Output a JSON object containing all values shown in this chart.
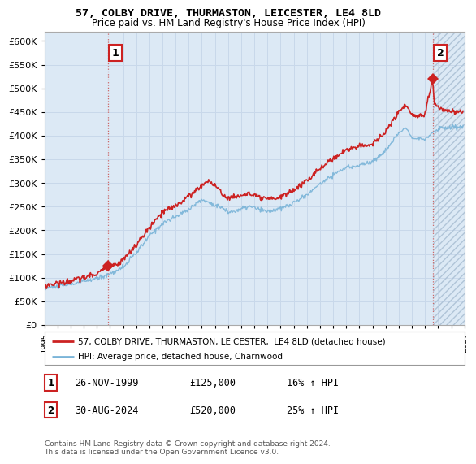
{
  "title": "57, COLBY DRIVE, THURMASTON, LEICESTER, LE4 8LD",
  "subtitle": "Price paid vs. HM Land Registry's House Price Index (HPI)",
  "legend_line1": "57, COLBY DRIVE, THURMASTON, LEICESTER,  LE4 8LD (detached house)",
  "legend_line2": "HPI: Average price, detached house, Charnwood",
  "sale1_date": "26-NOV-1999",
  "sale1_price": 125000,
  "sale1_label": "16% ↑ HPI",
  "sale2_date": "30-AUG-2024",
  "sale2_price": 520000,
  "sale2_label": "25% ↑ HPI",
  "footer": "Contains HM Land Registry data © Crown copyright and database right 2024.\nThis data is licensed under the Open Government Licence v3.0.",
  "hpi_color": "#7ab4d8",
  "price_color": "#cc2222",
  "sale_color": "#cc2222",
  "dashed_color": "#cc6666",
  "ylim": [
    0,
    620000
  ],
  "yticks": [
    0,
    50000,
    100000,
    150000,
    200000,
    250000,
    300000,
    350000,
    400000,
    450000,
    500000,
    550000,
    600000
  ],
  "background_color": "#ffffff",
  "grid_color": "#c8d8ea",
  "plot_bg": "#dce9f5",
  "hatch_bg": "#e8eef5"
}
